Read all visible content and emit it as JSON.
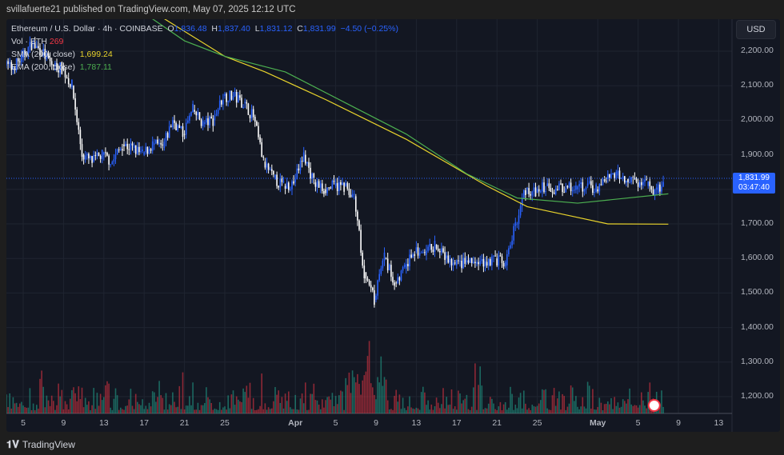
{
  "header": {
    "text": "svillafuerte21 published on TradingView.com, May 07, 2025 12:12 UTC"
  },
  "legend": {
    "symbol": "Ethereum / U.S. Dollar · 4h · COINBASE",
    "o_label": "O",
    "o": "1,836.48",
    "h_label": "H",
    "h": "1,837.40",
    "l_label": "L",
    "l": "1,831.12",
    "c_label": "C",
    "c": "1,831.99",
    "change": "−4.50 (−0.25%)",
    "vol_label": "Vol · ETH",
    "vol": "269",
    "sma_label": "SMA (200, close)",
    "sma": "1,699.24",
    "ema_label": "EMA (200, close)",
    "ema": "1,787.11"
  },
  "currency": "USD",
  "price_label": {
    "price": "1,831.99",
    "countdown": "03:47:40"
  },
  "brand": "TradingView",
  "colors": {
    "up": "#2962ff",
    "down": "#ffffff",
    "sma": "#e8d32c",
    "ema": "#4caf50",
    "vol_up": "#22ab94",
    "vol_down": "#f23645",
    "bg": "#131722"
  },
  "chart_data": {
    "type": "candlestick",
    "interval": "4h",
    "y_ticks": [
      "2,200.00",
      "2,100.00",
      "2,000.00",
      "1,900.00",
      "1,700.00",
      "1,600.00",
      "1,500.00",
      "1,400.00",
      "1,300.00",
      "1,200.00"
    ],
    "ylim": [
      1150,
      2330
    ],
    "x_ticks": [
      "5",
      "9",
      "13",
      "17",
      "21",
      "25",
      "Apr",
      "5",
      "9",
      "13",
      "17",
      "21",
      "25",
      "May",
      "5",
      "9",
      "13"
    ],
    "daily_close": {
      "start": "2025-03-03",
      "values": [
        2150,
        2180,
        2220,
        2200,
        2160,
        2150,
        2100,
        1900,
        1880,
        1900,
        1880,
        1930,
        1920,
        1900,
        1930,
        1920,
        2000,
        1960,
        2030,
        1990,
        2000,
        2070,
        2070,
        2050,
        2010,
        1880,
        1830,
        1810,
        1820,
        1900,
        1820,
        1800,
        1810,
        1810,
        1780,
        1560,
        1480,
        1600,
        1530,
        1570,
        1620,
        1610,
        1640,
        1600,
        1580,
        1590,
        1585,
        1590,
        1600,
        1580,
        1700,
        1800,
        1790,
        1810,
        1800,
        1810,
        1800,
        1810,
        1800,
        1830,
        1840,
        1830,
        1820,
        1810,
        1790,
        1832
      ]
    },
    "sma_200": [
      [
        "2025-03-17",
        2330
      ],
      [
        "2025-03-25",
        2185
      ],
      [
        "2025-03-29",
        2140
      ],
      [
        "2025-04-04",
        2060
      ],
      [
        "2025-04-12",
        1945
      ],
      [
        "2025-04-20",
        1810
      ],
      [
        "2025-04-24",
        1750
      ],
      [
        "2025-04-28",
        1725
      ],
      [
        "2025-05-02",
        1700
      ],
      [
        "2025-05-08",
        1699.24
      ]
    ],
    "ema_200": [
      [
        "2025-03-16",
        2330
      ],
      [
        "2025-03-21",
        2230
      ],
      [
        "2025-03-25",
        2185
      ],
      [
        "2025-03-31",
        2140
      ],
      [
        "2025-04-06",
        2050
      ],
      [
        "2025-04-12",
        1960
      ],
      [
        "2025-04-18",
        1845
      ],
      [
        "2025-04-23",
        1775
      ],
      [
        "2025-04-29",
        1760
      ],
      [
        "2025-05-08",
        1787.11
      ]
    ],
    "last_price": 1831.99
  }
}
